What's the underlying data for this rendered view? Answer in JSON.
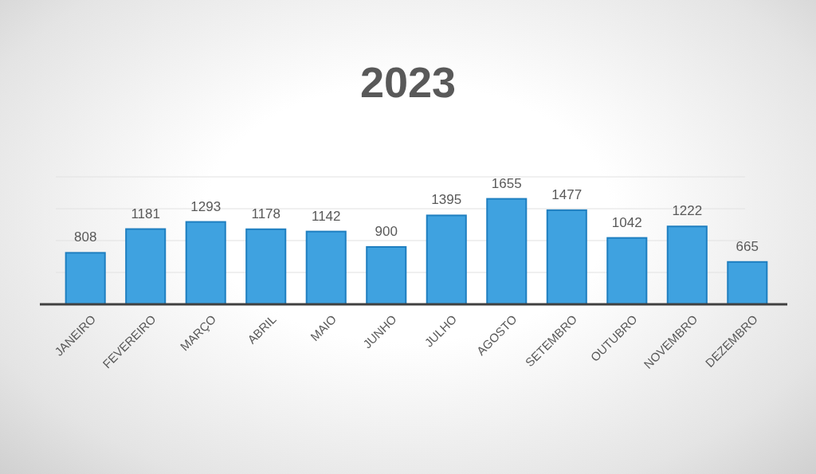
{
  "chart_data": {
    "type": "bar",
    "title": "2023",
    "categories": [
      "JANEIRO",
      "FEVEREIRO",
      "MARÇO",
      "ABRIL",
      "MAIO",
      "JUNHO",
      "JULHO",
      "AGOSTO",
      "SETEMBRO",
      "OUTUBRO",
      "NOVEMBRO",
      "DEZEMBRO"
    ],
    "values": [
      808,
      1181,
      1293,
      1178,
      1142,
      900,
      1395,
      1655,
      1477,
      1042,
      1222,
      665
    ],
    "color": "#3fa2e0",
    "ylim": [
      0,
      2000
    ],
    "yticks": [
      {
        "value": 0,
        "label": null
      },
      {
        "value": 500,
        "label": null
      },
      {
        "value": 1000,
        "label": null
      },
      {
        "value": 1500,
        "label": null
      },
      {
        "value": 2000,
        "label": null
      }
    ],
    "grid": "y",
    "tick_labels": "x",
    "data_labels": true
  }
}
